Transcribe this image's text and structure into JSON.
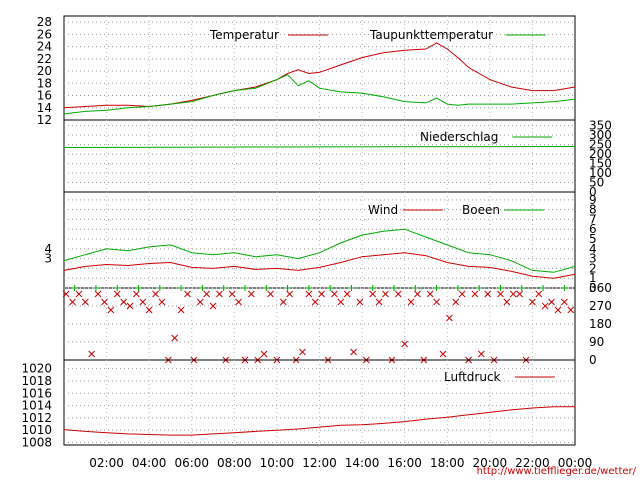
{
  "chart_data": [
    {
      "type": "line",
      "panel": "temperature",
      "legend": [
        "Temperatur",
        "Taupunkttemperatur"
      ],
      "y_ticks": [
        12,
        14,
        16,
        18,
        20,
        22,
        24,
        26,
        28
      ],
      "ylim": [
        12,
        29
      ],
      "x_hours": [
        0,
        1,
        2,
        3,
        4,
        5,
        6,
        7,
        8,
        9,
        10,
        10.5,
        11,
        11.5,
        12,
        13,
        14,
        15,
        16,
        17,
        17.5,
        18,
        18.5,
        19,
        20,
        21,
        22,
        23,
        24
      ],
      "series": [
        {
          "name": "Temperatur",
          "color": "#cc0000",
          "values": [
            14.0,
            14.2,
            14.4,
            14.4,
            14.2,
            14.6,
            15.2,
            16.0,
            16.8,
            17.4,
            18.6,
            19.6,
            20.2,
            19.6,
            19.8,
            21.0,
            22.2,
            23.0,
            23.4,
            23.6,
            24.6,
            23.6,
            22.2,
            20.6,
            18.6,
            17.4,
            16.8,
            16.8,
            17.4
          ]
        },
        {
          "name": "Taupunkttemperatur",
          "color": "#00aa00",
          "values": [
            13.0,
            13.4,
            13.6,
            14.0,
            14.2,
            14.6,
            15.0,
            16.0,
            16.8,
            17.2,
            18.6,
            19.4,
            17.6,
            18.4,
            17.2,
            16.6,
            16.4,
            15.8,
            15.0,
            14.8,
            15.6,
            14.6,
            14.4,
            14.6,
            14.6,
            14.6,
            14.8,
            15.0,
            15.4
          ]
        }
      ]
    },
    {
      "type": "line",
      "panel": "precipitation",
      "legend": [
        "Niederschlag"
      ],
      "y_ticks": [
        0,
        50,
        100,
        150,
        200,
        250,
        300,
        350
      ],
      "ylim": [
        0,
        380
      ],
      "x_hours": [
        0,
        12,
        24
      ],
      "series": [
        {
          "name": "Niederschlag",
          "color": "#00aa00",
          "values": [
            235,
            238,
            240
          ]
        }
      ]
    },
    {
      "type": "line",
      "panel": "wind",
      "legend": [
        "Wind",
        "Boeen"
      ],
      "y_ticks": [
        0,
        1,
        2,
        3,
        4,
        5,
        6,
        7,
        8,
        9
      ],
      "y2_ticks": [
        3,
        4
      ],
      "ylim": [
        0,
        9.8
      ],
      "x_hours": [
        0,
        1,
        2,
        3,
        4,
        5,
        6,
        7,
        8,
        9,
        10,
        11,
        12,
        13,
        14,
        15,
        16,
        17,
        18,
        19,
        20,
        21,
        22,
        23,
        24
      ],
      "series": [
        {
          "name": "Wind",
          "color": "#cc0000",
          "values": [
            1.8,
            2.2,
            2.4,
            2.3,
            2.5,
            2.6,
            2.1,
            2.0,
            2.2,
            1.9,
            2.0,
            1.8,
            2.1,
            2.6,
            3.2,
            3.4,
            3.6,
            3.3,
            2.6,
            2.2,
            2.1,
            1.7,
            1.2,
            1.0,
            1.4
          ]
        },
        {
          "name": "Boeen",
          "color": "#00aa00",
          "values": [
            2.8,
            3.4,
            4.0,
            3.8,
            4.2,
            4.4,
            3.6,
            3.4,
            3.6,
            3.2,
            3.4,
            3.0,
            3.6,
            4.6,
            5.4,
            5.8,
            6.0,
            5.2,
            4.4,
            3.6,
            3.4,
            2.8,
            1.8,
            1.6,
            2.2
          ]
        }
      ]
    },
    {
      "type": "scatter",
      "panel": "wind-direction",
      "y_ticks": [
        0,
        90,
        180,
        270,
        360
      ],
      "ylim": [
        0,
        360
      ],
      "series": [
        {
          "name": "",
          "color": "#cc0000",
          "marker": "x",
          "points": [
            [
              0.1,
              330
            ],
            [
              0.4,
              290
            ],
            [
              0.7,
              330
            ],
            [
              1.0,
              290
            ],
            [
              1.3,
              30
            ],
            [
              1.6,
              330
            ],
            [
              1.9,
              290
            ],
            [
              2.2,
              250
            ],
            [
              2.5,
              330
            ],
            [
              2.8,
              290
            ],
            [
              3.1,
              270
            ],
            [
              3.4,
              330
            ],
            [
              3.7,
              290
            ],
            [
              4.0,
              250
            ],
            [
              4.3,
              330
            ],
            [
              4.6,
              290
            ],
            [
              4.9,
              0
            ],
            [
              5.2,
              110
            ],
            [
              5.5,
              250
            ],
            [
              5.8,
              330
            ],
            [
              6.1,
              0
            ],
            [
              6.4,
              290
            ],
            [
              6.7,
              330
            ],
            [
              7.0,
              270
            ],
            [
              7.3,
              330
            ],
            [
              7.6,
              0
            ],
            [
              7.9,
              330
            ],
            [
              8.2,
              290
            ],
            [
              8.5,
              0
            ],
            [
              8.8,
              330
            ],
            [
              9.1,
              0
            ],
            [
              9.4,
              30
            ],
            [
              9.7,
              330
            ],
            [
              10.0,
              0
            ],
            [
              10.3,
              290
            ],
            [
              10.6,
              330
            ],
            [
              10.9,
              0
            ],
            [
              11.2,
              40
            ],
            [
              11.5,
              330
            ],
            [
              11.8,
              290
            ],
            [
              12.1,
              330
            ],
            [
              12.4,
              0
            ],
            [
              12.7,
              330
            ],
            [
              13.0,
              290
            ],
            [
              13.3,
              330
            ],
            [
              13.6,
              40
            ],
            [
              13.9,
              290
            ],
            [
              14.2,
              0
            ],
            [
              14.5,
              330
            ],
            [
              14.8,
              290
            ],
            [
              15.1,
              330
            ],
            [
              15.4,
              0
            ],
            [
              15.7,
              330
            ],
            [
              16.0,
              80
            ],
            [
              16.3,
              290
            ],
            [
              16.6,
              330
            ],
            [
              16.9,
              0
            ],
            [
              17.2,
              330
            ],
            [
              17.5,
              290
            ],
            [
              17.8,
              30
            ],
            [
              18.1,
              210
            ],
            [
              18.4,
              290
            ],
            [
              18.7,
              330
            ],
            [
              19.0,
              0
            ],
            [
              19.3,
              330
            ],
            [
              19.6,
              30
            ],
            [
              19.9,
              330
            ],
            [
              20.2,
              0
            ],
            [
              20.5,
              330
            ],
            [
              20.8,
              290
            ],
            [
              21.1,
              330
            ],
            [
              21.4,
              330
            ],
            [
              21.7,
              0
            ],
            [
              22.0,
              290
            ],
            [
              22.3,
              330
            ],
            [
              22.6,
              270
            ],
            [
              22.9,
              290
            ],
            [
              23.2,
              250
            ],
            [
              23.5,
              290
            ],
            [
              23.8,
              250
            ]
          ]
        },
        {
          "name": "",
          "color": "#00aa00",
          "marker": "+",
          "points": [
            [
              0.5,
              360
            ],
            [
              1.5,
              360
            ],
            [
              2.5,
              360
            ],
            [
              3.5,
              360
            ],
            [
              4.5,
              360
            ],
            [
              5.5,
              360
            ],
            [
              6.5,
              360
            ],
            [
              7.5,
              360
            ],
            [
              8.5,
              360
            ],
            [
              9.5,
              360
            ],
            [
              10.5,
              360
            ],
            [
              11.5,
              360
            ],
            [
              12.5,
              360
            ],
            [
              13.5,
              360
            ],
            [
              14.5,
              360
            ],
            [
              15.5,
              360
            ],
            [
              16.5,
              360
            ],
            [
              17.5,
              360
            ],
            [
              18.5,
              360
            ],
            [
              19.5,
              360
            ],
            [
              20.5,
              360
            ],
            [
              21.5,
              360
            ],
            [
              22.5,
              360
            ],
            [
              23.5,
              360
            ]
          ]
        }
      ]
    },
    {
      "type": "line",
      "panel": "pressure",
      "legend": [
        "Luftdruck"
      ],
      "y_ticks": [
        1008,
        1010,
        1012,
        1014,
        1016,
        1018,
        1020
      ],
      "ylim": [
        1007.6,
        1021.4
      ],
      "x_hours": [
        0,
        1,
        2,
        3,
        4,
        5,
        6,
        7,
        8,
        9,
        10,
        11,
        12,
        13,
        14,
        15,
        16,
        17,
        18,
        19,
        20,
        21,
        22,
        23,
        24
      ],
      "series": [
        {
          "name": "Luftdruck",
          "color": "#cc0000",
          "values": [
            1010.1,
            1009.8,
            1009.6,
            1009.4,
            1009.3,
            1009.2,
            1009.2,
            1009.4,
            1009.6,
            1009.8,
            1010.0,
            1010.2,
            1010.5,
            1010.8,
            1010.9,
            1011.1,
            1011.4,
            1011.8,
            1012.1,
            1012.5,
            1012.9,
            1013.3,
            1013.6,
            1013.8,
            1013.8
          ]
        }
      ]
    }
  ],
  "x_ticks": [
    "02:00",
    "04:00",
    "06:00",
    "08:00",
    "10:00",
    "12:00",
    "14:00",
    "16:00",
    "18:00",
    "20:00",
    "22:00",
    "00:00"
  ],
  "credit": "http://www.tiefflieger.de/wetter/"
}
